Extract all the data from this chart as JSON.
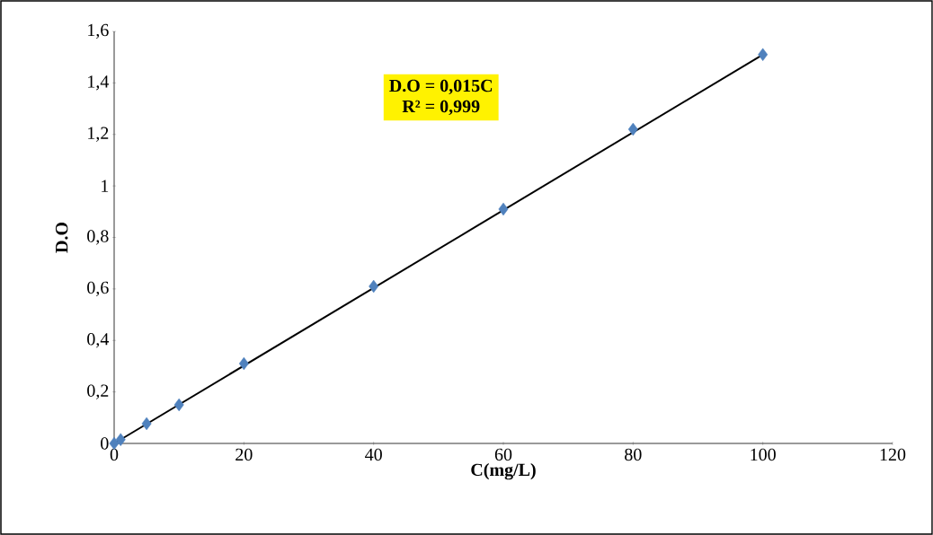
{
  "chart_data": {
    "type": "scatter",
    "xlabel": "C(mg/L)",
    "ylabel": "D.O",
    "annotations": [
      "D.O = 0,015C",
      "R² = 0,999"
    ],
    "series": [
      {
        "color": "#4f81bd",
        "marker": "diamond",
        "x": [
          0,
          1,
          5,
          10,
          20,
          40,
          60,
          80,
          100
        ],
        "values": [
          0,
          0.015,
          0.077,
          0.15,
          0.31,
          0.61,
          0.91,
          1.22,
          1.51
        ]
      },
      {
        "type": "line",
        "color": "#000000",
        "x": [
          0,
          100
        ],
        "values": [
          0,
          1.51
        ]
      }
    ],
    "xlim": [
      0,
      120
    ],
    "ylim": [
      0,
      1.6
    ],
    "xticks": [
      0,
      20,
      40,
      60,
      80,
      100,
      120
    ],
    "yticks": [
      0,
      {
        "value": 0.2,
        "label": "0,2"
      },
      {
        "value": 0.4,
        "label": "0,4"
      },
      {
        "value": 0.6,
        "label": "0,6"
      },
      {
        "value": 0.8,
        "label": "0,8"
      },
      1,
      {
        "value": 1.2,
        "label": "1,2"
      },
      {
        "value": 1.4,
        "label": "1,4"
      },
      {
        "value": 1.6,
        "label": "1,6"
      }
    ],
    "grid": false
  }
}
